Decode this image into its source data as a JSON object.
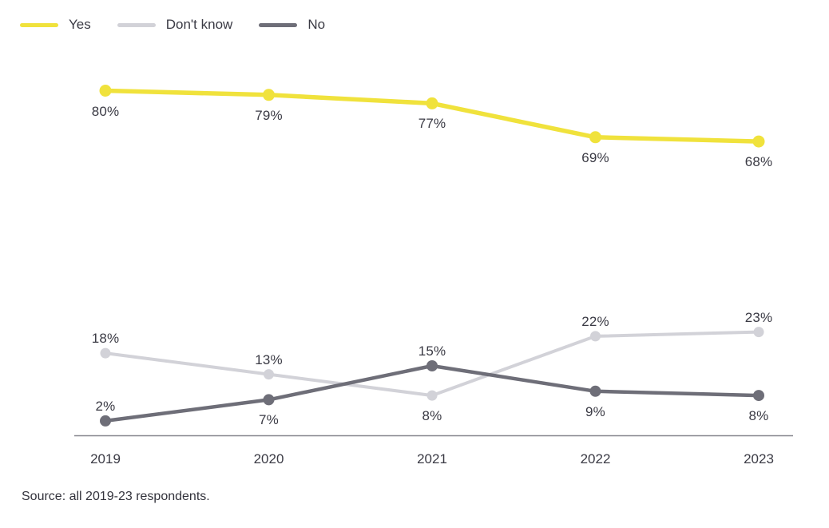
{
  "chart_data": {
    "type": "line",
    "x": [
      "2019",
      "2020",
      "2021",
      "2022",
      "2023"
    ],
    "series": [
      {
        "name": "Yes",
        "color": "#f0e23c",
        "values": [
          80,
          79,
          77,
          69,
          68
        ],
        "label_positions": [
          "below",
          "below",
          "below",
          "below",
          "below"
        ]
      },
      {
        "name": "Don't know",
        "color": "#d2d2d8",
        "values": [
          18,
          13,
          8,
          22,
          23
        ],
        "label_positions": [
          "above",
          "above",
          "below",
          "above",
          "above"
        ]
      },
      {
        "name": "No",
        "color": "#6e6e78",
        "values": [
          2,
          7,
          15,
          9,
          8
        ],
        "label_positions": [
          "above",
          "below",
          "above",
          "below",
          "below"
        ]
      }
    ],
    "value_suffix": "%",
    "ylim": [
      0,
      90
    ],
    "grid": false,
    "legend_position": "top-left",
    "source": "Source: all 2019-23 respondents."
  }
}
